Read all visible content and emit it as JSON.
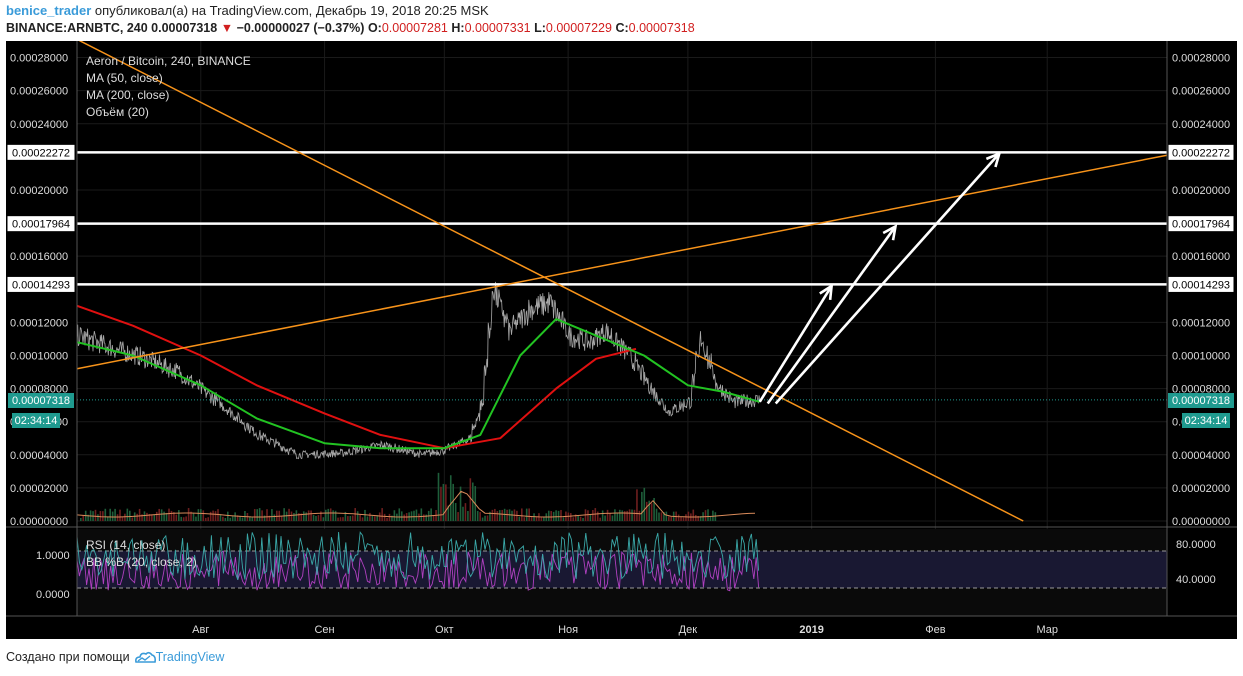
{
  "header": {
    "user": "benice_trader",
    "published": "опубликовал(а) на TradingView.com, Декабрь 19, 2018 20:25 MSK",
    "symbol": "BINANCE:ARNBTC, 240",
    "last": "0.00007318",
    "change": "−0.00000027 (−0.37%)",
    "o_label": "O:",
    "o_value": "0.00007281",
    "h_label": "H:",
    "h_value": "0.00007331",
    "l_label": "L:",
    "l_value": "0.00007229",
    "c_label": "C:",
    "c_value": "0.00007318"
  },
  "legend": {
    "title": "Aeron / Bitcoin, 240, BINANCE",
    "ma50": "MA (50, close)",
    "ma200": "MA (200, close)",
    "volume": "Объём (20)",
    "rsi": "RSI (14, close)",
    "bb": "BB %B (20, close, 2)"
  },
  "badges": {
    "price": "0.00007318",
    "countdown": "02:34:14"
  },
  "footer": {
    "created": "Создано при помощи",
    "brand": "TradingView"
  },
  "colors": {
    "background": "#000000",
    "price_line": "#a8a8a8",
    "ma50": "#22c322",
    "ma200": "#e01010",
    "trendline": "#f7931a",
    "level": "#ffffff",
    "badge": "#1f9a8f",
    "rsi": "#3aa8a8",
    "bb": "#b040c0"
  },
  "chart_data": [
    {
      "type": "line",
      "ylim": [
        0,
        0.00029
      ],
      "x_ticks": [
        "Авг",
        "Сен",
        "Окт",
        "Ноя",
        "Дек",
        "2019",
        "Фев",
        "Мар"
      ],
      "y_ticks": [
        "0.00028000",
        "0.00026000",
        "0.00024000",
        "0.00020000",
        "0.00016000",
        "0.00012000",
        "0.00010000",
        "0.00008000",
        "0.00006000",
        "0.00004000",
        "0.00002000",
        "0.00000000"
      ],
      "levels": [
        "0.00022272",
        "0.00017964",
        "0.00014293"
      ],
      "date_range": [
        "2018-07-01",
        "2019-03-31"
      ],
      "price": [
        [
          "2018-07-01",
          0.000112
        ],
        [
          "2018-07-10",
          0.000104
        ],
        [
          "2018-07-18",
          9.8e-05
        ],
        [
          "2018-07-26",
          9e-05
        ],
        [
          "2018-08-05",
          7.2e-05
        ],
        [
          "2018-08-15",
          5.2e-05
        ],
        [
          "2018-08-25",
          4e-05
        ],
        [
          "2018-09-05",
          4.1e-05
        ],
        [
          "2018-09-15",
          4.6e-05
        ],
        [
          "2018-09-25",
          4e-05
        ],
        [
          "2018-10-01",
          4.3e-05
        ],
        [
          "2018-10-07",
          5e-05
        ],
        [
          "2018-10-10",
          7e-05
        ],
        [
          "2018-10-13",
          0.00014
        ],
        [
          "2018-10-17",
          0.000115
        ],
        [
          "2018-10-22",
          0.000128
        ],
        [
          "2018-10-27",
          0.000132
        ],
        [
          "2018-11-01",
          0.000112
        ],
        [
          "2018-11-06",
          0.000108
        ],
        [
          "2018-11-10",
          0.000115
        ],
        [
          "2018-11-16",
          0.0001
        ],
        [
          "2018-11-22",
          7.8e-05
        ],
        [
          "2018-11-26",
          6.6e-05
        ],
        [
          "2018-12-01",
          7.2e-05
        ],
        [
          "2018-12-04",
          0.00011
        ],
        [
          "2018-12-08",
          8.2e-05
        ],
        [
          "2018-12-12",
          7.2e-05
        ],
        [
          "2018-12-19",
          7.318e-05
        ]
      ],
      "ma50": [
        [
          "2018-07-01",
          0.000108
        ],
        [
          "2018-07-15",
          0.0001
        ],
        [
          "2018-08-01",
          8.2e-05
        ],
        [
          "2018-08-15",
          6.2e-05
        ],
        [
          "2018-09-01",
          4.7e-05
        ],
        [
          "2018-09-15",
          4.4e-05
        ],
        [
          "2018-10-01",
          4.4e-05
        ],
        [
          "2018-10-10",
          5.2e-05
        ],
        [
          "2018-10-20",
          0.0001
        ],
        [
          "2018-10-29",
          0.000122
        ],
        [
          "2018-11-08",
          0.000112
        ],
        [
          "2018-11-20",
          0.0001
        ],
        [
          "2018-12-01",
          8.2e-05
        ],
        [
          "2018-12-10",
          7.8e-05
        ],
        [
          "2018-12-19",
          7.2e-05
        ]
      ],
      "ma200": [
        [
          "2018-07-01",
          0.00013
        ],
        [
          "2018-07-15",
          0.000118
        ],
        [
          "2018-08-01",
          0.0001
        ],
        [
          "2018-08-15",
          8.2e-05
        ],
        [
          "2018-09-01",
          6.5e-05
        ],
        [
          "2018-09-15",
          5.2e-05
        ],
        [
          "2018-10-01",
          4.4e-05
        ],
        [
          "2018-10-15",
          5e-05
        ],
        [
          "2018-10-29",
          8e-05
        ],
        [
          "2018-11-08",
          9.8e-05
        ],
        [
          "2018-11-18",
          0.000104
        ]
      ],
      "trendlines": [
        {
          "from": [
            "2018-07-01",
            0.000291
          ],
          "to": [
            "2019-02-23",
            0.0
          ]
        },
        {
          "from": [
            "2018-07-01",
            9.2e-05
          ],
          "to": [
            "2019-03-31",
            0.000221
          ]
        }
      ],
      "arrows": [
        {
          "from": [
            "2018-12-19",
            7.2e-05
          ],
          "to": [
            "2019-01-06",
            0.000142
          ]
        },
        {
          "from": [
            "2018-12-21",
            7.1e-05
          ],
          "to": [
            "2019-01-22",
            0.000178
          ]
        },
        {
          "from": [
            "2018-12-23",
            7.1e-05
          ],
          "to": [
            "2019-02-17",
            0.000222
          ]
        }
      ]
    },
    {
      "type": "line",
      "y_ticks": [
        "1.0000",
        "0.0000",
        "80.0000",
        "40.0000"
      ],
      "bands": [
        "70",
        "30"
      ]
    }
  ]
}
